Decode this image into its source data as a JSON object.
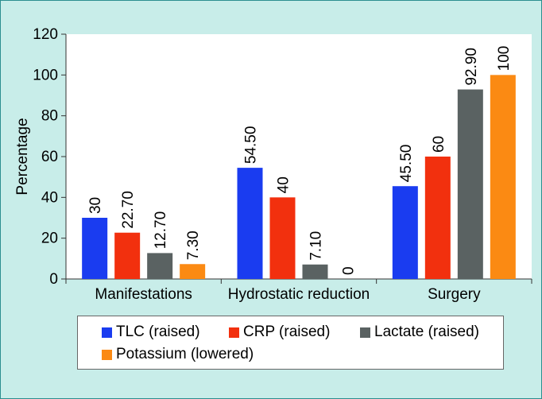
{
  "chart_data": {
    "type": "bar",
    "title": "",
    "xlabel": "",
    "ylabel": "Percentage",
    "ylim": [
      0,
      120
    ],
    "yticks": [
      0,
      20,
      40,
      60,
      80,
      100,
      120
    ],
    "categories": [
      "Manifestations",
      "Hydrostatic reduction",
      "Surgery"
    ],
    "series": [
      {
        "name": "TLC (raised)",
        "color": "#1a3cf0",
        "values": [
          30,
          54.5,
          45.5
        ],
        "labels": [
          "30",
          "54.50",
          "45.50"
        ]
      },
      {
        "name": "CRP (raised)",
        "color": "#f2300e",
        "values": [
          22.7,
          40,
          60
        ],
        "labels": [
          "22.70",
          "40",
          "60"
        ]
      },
      {
        "name": "Lactate (raised)",
        "color": "#5a6262",
        "values": [
          12.7,
          7.1,
          92.9
        ],
        "labels": [
          "12.70",
          "7.10",
          "92.90"
        ]
      },
      {
        "name": "Potassium (lowered)",
        "color": "#fb8a13",
        "values": [
          7.3,
          0,
          100
        ],
        "labels": [
          "7.30",
          "0",
          "100"
        ]
      }
    ],
    "legend_position": "bottom",
    "grid": false
  },
  "colors": {
    "background": "#c8ede9",
    "border": "#2b8f8f",
    "plot_area": "#ffffff"
  }
}
